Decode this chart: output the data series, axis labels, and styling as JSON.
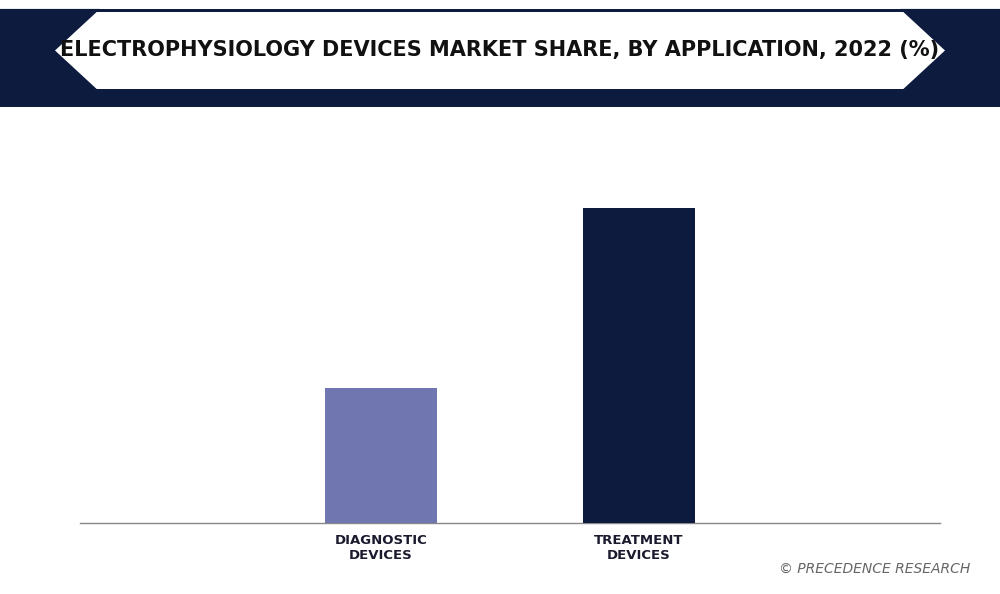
{
  "title": "ELECTROPHYSIOLOGY DEVICES MARKET SHARE, BY APPLICATION, 2022 (%)",
  "categories": [
    "DIAGNOSTIC\nDEVICES",
    "TREATMENT\nDEVICES"
  ],
  "values": [
    30.0,
    70.0
  ],
  "bar_colors": [
    "#7077b0",
    "#0d1b3e"
  ],
  "background_color": "#ffffff",
  "border_color": "#0d1b3e",
  "title_fontsize": 15,
  "tick_fontsize": 9.5,
  "bar_width": 0.13,
  "ylim": [
    0,
    82
  ],
  "watermark": "© PRECEDENCE RESEARCH",
  "watermark_fontsize": 10,
  "x_positions": [
    0.35,
    0.65
  ]
}
